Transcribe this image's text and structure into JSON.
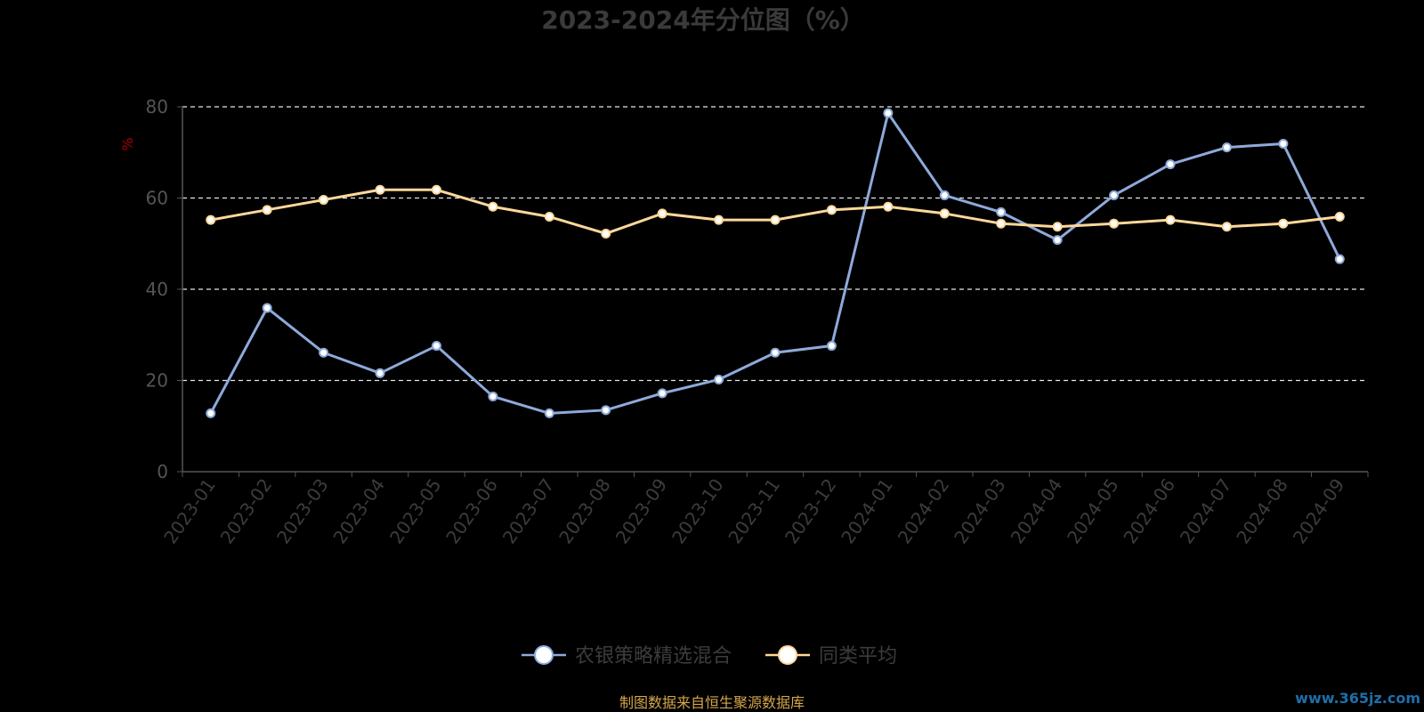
{
  "chart_data": {
    "type": "line",
    "title": "2023-2024年分位图（%）",
    "xlabel": "",
    "ylabel": "%",
    "ylim": [
      0,
      80
    ],
    "yticks": [
      0,
      20,
      40,
      60,
      80
    ],
    "grid": true,
    "legend_position": "bottom-center",
    "categories": [
      "2023-01",
      "2023-02",
      "2023-03",
      "2023-04",
      "2023-05",
      "2023-06",
      "2023-07",
      "2023-08",
      "2023-09",
      "2023-10",
      "2023-11",
      "2023-12",
      "2024-01",
      "2024-02",
      "2024-03",
      "2024-04",
      "2024-05",
      "2024-06",
      "2024-07",
      "2024-08",
      "2024-09"
    ],
    "series": [
      {
        "name": "农银策略精选混合",
        "color": "#8eaadb",
        "values": [
          12.8,
          35.9,
          26.1,
          21.6,
          27.6,
          16.5,
          12.8,
          13.5,
          17.2,
          20.2,
          26.1,
          27.6,
          78.6,
          60.6,
          56.9,
          50.8,
          60.6,
          67.4,
          71.1,
          71.9,
          46.6
        ]
      },
      {
        "name": "同类平均",
        "color": "#fdd89a",
        "values": [
          55.2,
          57.4,
          59.6,
          61.8,
          61.8,
          58.1,
          55.9,
          52.2,
          56.6,
          55.2,
          55.2,
          57.4,
          58.1,
          56.6,
          54.4,
          53.7,
          54.4,
          55.2,
          53.7,
          54.4,
          55.9
        ]
      }
    ]
  },
  "source_note": "制图数据来自恒生聚源数据库",
  "watermark": "www.365jz.com"
}
